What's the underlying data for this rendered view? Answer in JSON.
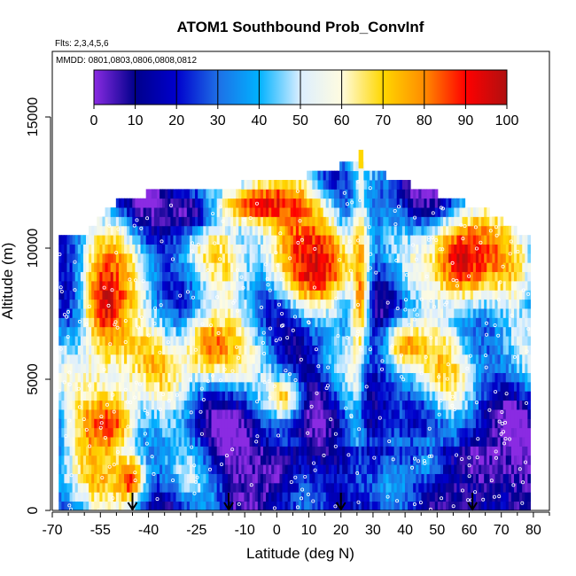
{
  "chart_data": {
    "type": "heatmap",
    "title": "ATOM1 Southbound Prob_ConvInf",
    "annotations": {
      "flights": "Flts: 2,3,4,5,6",
      "dates": "MMDD: 0801,0803,0806,0808,0812"
    },
    "xlabel": "Latitude (deg N)",
    "ylabel": "Altitude (m)",
    "xlim": [
      -70,
      85
    ],
    "ylim": [
      0,
      17500
    ],
    "x_ticks": [
      -70,
      -55,
      -40,
      -25,
      -10,
      0,
      10,
      20,
      30,
      40,
      50,
      60,
      70,
      80
    ],
    "x_tick_labels": [
      "-70",
      "-55",
      "-40",
      "-25",
      "-10",
      "0",
      "10",
      "20",
      "30",
      "40",
      "50",
      "60",
      "70",
      "80"
    ],
    "y_ticks": [
      0,
      5000,
      10000,
      15000
    ],
    "y_tick_labels": [
      "0",
      "5000",
      "10000",
      "15000"
    ],
    "colorbar": {
      "ticks": [
        0,
        10,
        20,
        30,
        40,
        50,
        60,
        70,
        80,
        90,
        100
      ],
      "tick_labels": [
        "0",
        "10",
        "20",
        "30",
        "40",
        "50",
        "60",
        "70",
        "80",
        "90",
        "100"
      ],
      "colors": [
        "#8a2be2",
        "#00008b",
        "#0000cd",
        "#1e6fe6",
        "#00b2ff",
        "#dceeff",
        "#fffce0",
        "#ffd700",
        "#ff8c00",
        "#ff0000",
        "#b01010"
      ]
    },
    "grid": false,
    "cell_height_m": 350,
    "profile_latitudes": [
      -68,
      -59,
      -49,
      -41,
      -30,
      -18,
      -9,
      2,
      13,
      24,
      34,
      45,
      56,
      68,
      78
    ],
    "profile_tops_m": [
      10300,
      10500,
      11700,
      11900,
      12000,
      12100,
      12300,
      12400,
      12700,
      13100,
      12600,
      12100,
      11700,
      11100,
      10200
    ],
    "hotspots": [
      {
        "lat": -53,
        "alt": 8000,
        "rx": 10,
        "ry": 2800,
        "value": 95
      },
      {
        "lat": -53,
        "alt": 3300,
        "rx": 10,
        "ry": 1400,
        "value": 90
      },
      {
        "lat": -46,
        "alt": 1200,
        "rx": 5,
        "ry": 900,
        "value": 88
      },
      {
        "lat": -4,
        "alt": 11700,
        "rx": 18,
        "ry": 900,
        "value": 92
      },
      {
        "lat": 12,
        "alt": 9400,
        "rx": 14,
        "ry": 2000,
        "value": 95
      },
      {
        "lat": 26,
        "alt": 8000,
        "rx": 3,
        "ry": 4500,
        "value": 80
      },
      {
        "lat": 58,
        "alt": 9600,
        "rx": 12,
        "ry": 1900,
        "value": 95
      },
      {
        "lat": -20,
        "alt": 6300,
        "rx": 10,
        "ry": 1400,
        "value": 82
      },
      {
        "lat": 40,
        "alt": 6300,
        "rx": 8,
        "ry": 1000,
        "value": 78
      },
      {
        "lat": 2,
        "alt": 4300,
        "rx": 6,
        "ry": 900,
        "value": 70
      },
      {
        "lat": 47,
        "alt": 1800,
        "rx": 5,
        "ry": 800,
        "value": 72
      },
      {
        "lat": 36,
        "alt": 3600,
        "rx": 6,
        "ry": 900,
        "value": 25
      },
      {
        "lat": 64,
        "alt": 1800,
        "rx": 10,
        "ry": 1500,
        "value": 3
      },
      {
        "lat": -3,
        "alt": 1500,
        "rx": 10,
        "ry": 1200,
        "value": 5
      },
      {
        "lat": -28,
        "alt": 11400,
        "rx": 8,
        "ry": 900,
        "value": 4
      },
      {
        "lat": 30,
        "alt": 4000,
        "rx": 5,
        "ry": 2500,
        "value": 12
      }
    ],
    "descent_markers_lat": [
      -45,
      -15,
      20,
      61
    ]
  }
}
